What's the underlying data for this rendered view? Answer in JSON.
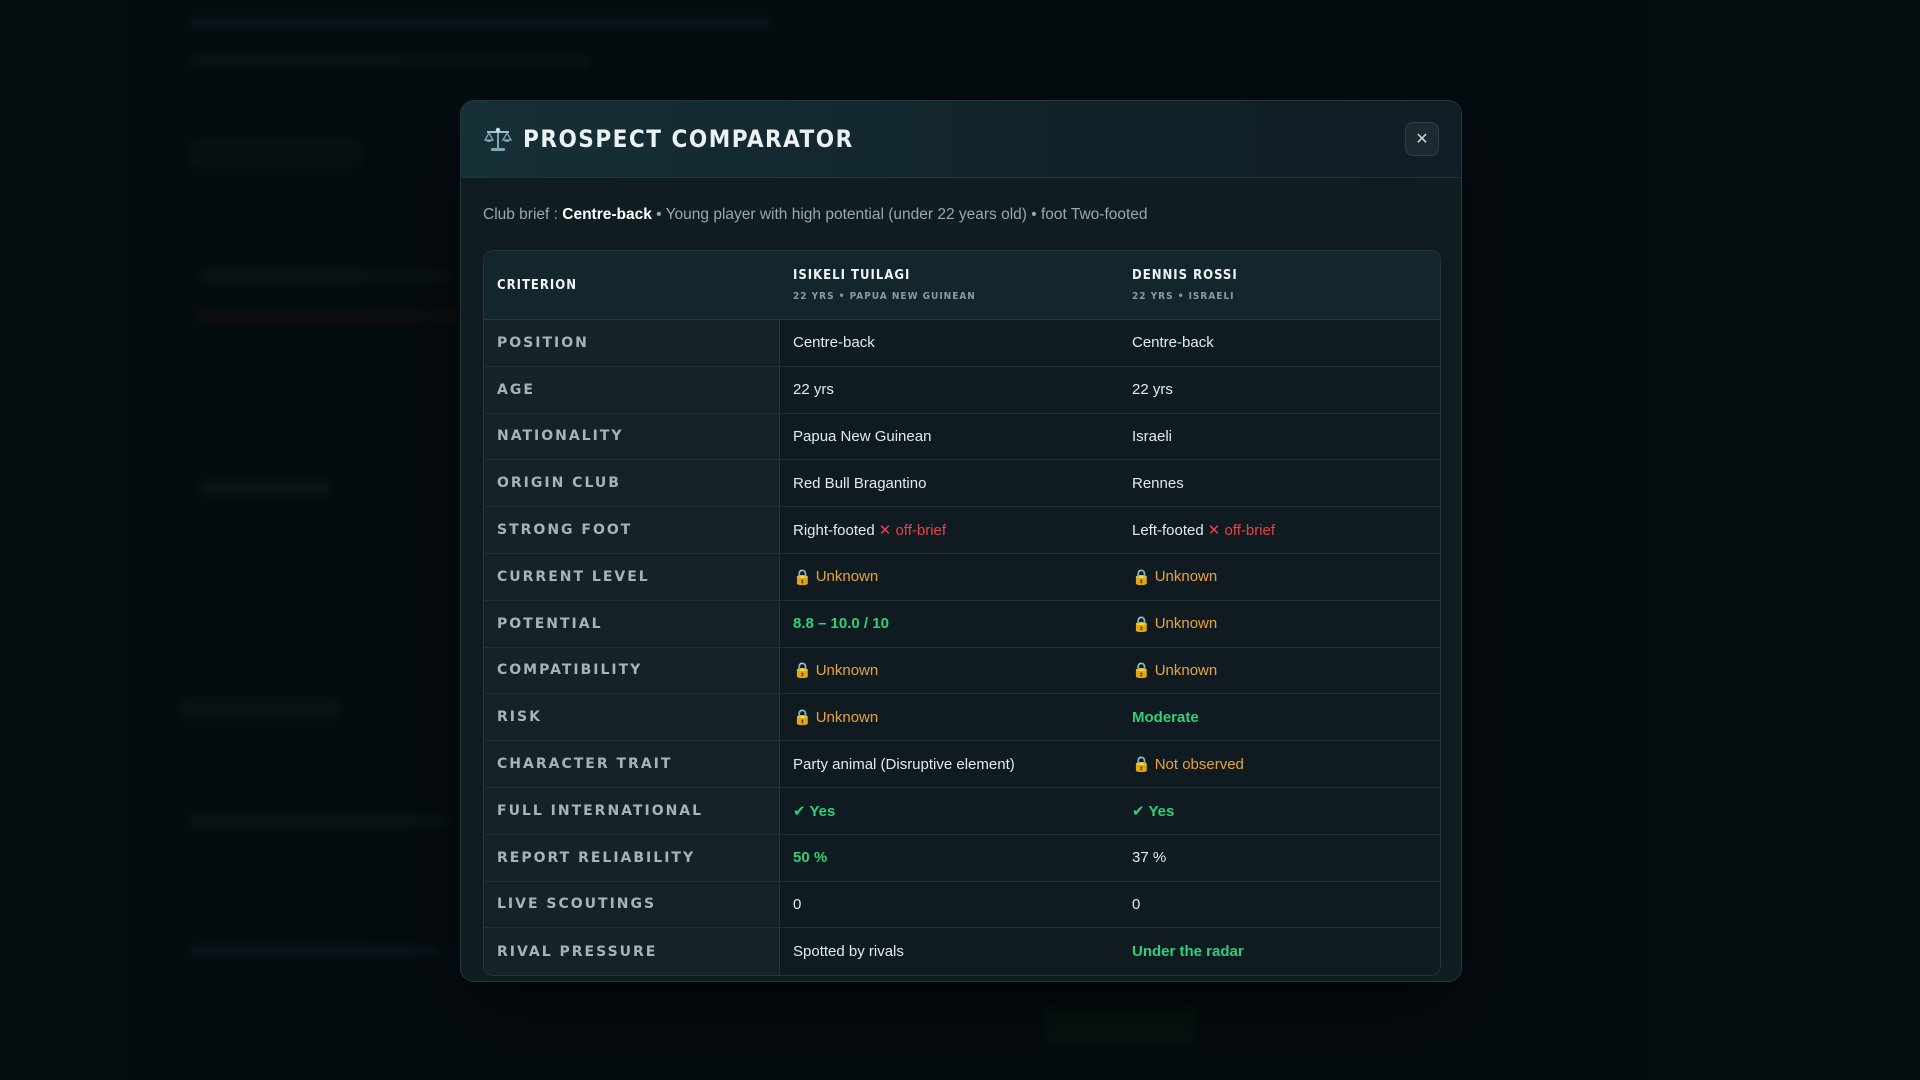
{
  "modal": {
    "title": "PROSPECT COMPARATOR",
    "close_label": "✕",
    "brief": {
      "prefix": "Club brief : ",
      "position": "Centre-back",
      "rest": " • Young player with high potential (under 22 years old) • foot Two-footed"
    }
  },
  "table": {
    "header": {
      "criterion": "CRITERION",
      "players": [
        {
          "name": "ISIKELI TUILAGI",
          "sub": "22 YRS • PAPUA NEW GUINEAN"
        },
        {
          "name": "DENNIS ROSSI",
          "sub": "22 YRS • ISRAELI"
        }
      ]
    },
    "rows": [
      {
        "label": "POSITION",
        "a": {
          "text": "Centre-back"
        },
        "b": {
          "text": "Centre-back"
        }
      },
      {
        "label": "AGE",
        "a": {
          "text": "22 yrs"
        },
        "b": {
          "text": "22 yrs"
        }
      },
      {
        "label": "NATIONALITY",
        "a": {
          "text": "Papua New Guinean"
        },
        "b": {
          "text": "Israeli"
        }
      },
      {
        "label": "ORIGIN CLUB",
        "a": {
          "text": "Red Bull Bragantino"
        },
        "b": {
          "text": "Rennes"
        }
      },
      {
        "label": "STRONG FOOT",
        "a": {
          "text": "Right-footed",
          "flag": "✕ off-brief"
        },
        "b": {
          "text": "Left-footed",
          "flag": "✕ off-brief"
        }
      },
      {
        "label": "CURRENT LEVEL",
        "a": {
          "text": "Unknown",
          "style": "unknown"
        },
        "b": {
          "text": "Unknown",
          "style": "unknown"
        }
      },
      {
        "label": "POTENTIAL",
        "a": {
          "text": "8.8 – 10.0 / 10",
          "style": "green"
        },
        "b": {
          "text": "Unknown",
          "style": "unknown"
        }
      },
      {
        "label": "COMPATIBILITY",
        "a": {
          "text": "Unknown",
          "style": "unknown"
        },
        "b": {
          "text": "Unknown",
          "style": "unknown"
        }
      },
      {
        "label": "RISK",
        "a": {
          "text": "Unknown",
          "style": "unknown"
        },
        "b": {
          "text": "Moderate",
          "style": "green"
        }
      },
      {
        "label": "CHARACTER TRAIT",
        "a": {
          "text": "Party animal (Disruptive element)"
        },
        "b": {
          "text": "Not observed",
          "style": "unknown"
        }
      },
      {
        "label": "FULL INTERNATIONAL",
        "a": {
          "text": "✔ Yes",
          "style": "green"
        },
        "b": {
          "text": "✔ Yes",
          "style": "green"
        }
      },
      {
        "label": "REPORT RELIABILITY",
        "a": {
          "text": "50 %",
          "style": "green"
        },
        "b": {
          "text": "37 %"
        }
      },
      {
        "label": "LIVE SCOUTINGS",
        "a": {
          "text": "0"
        },
        "b": {
          "text": "0"
        }
      },
      {
        "label": "RIVAL PRESSURE",
        "a": {
          "text": "Spotted by rivals"
        },
        "b": {
          "text": "Under the radar",
          "style": "green"
        }
      }
    ]
  },
  "colors": {
    "unknown": "#e8a33a",
    "positive": "#2fd07a",
    "negative": "#e2434c",
    "background": "#0a1519"
  },
  "icons": {
    "title": "scales-icon",
    "unknown": "lock-icon",
    "close": "close-icon"
  }
}
